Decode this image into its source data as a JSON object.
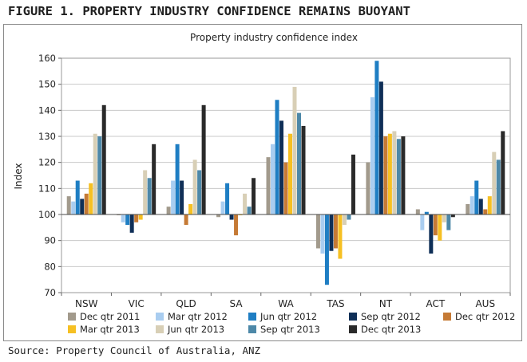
{
  "figure_title": "FIGURE 1. PROPERTY INDUSTRY CONFIDENCE REMAINS BUOYANT",
  "source": "Source: Property Council of Australia, ANZ",
  "chart_data": {
    "type": "bar",
    "title": "Property industry confidence index",
    "xlabel": "",
    "ylabel": "Index",
    "ylim": [
      70,
      160
    ],
    "yticks": [
      70,
      80,
      90,
      100,
      110,
      120,
      130,
      140,
      150,
      160
    ],
    "baseline": 100,
    "grid": true,
    "legend_position": "bottom",
    "categories": [
      "NSW",
      "VIC",
      "QLD",
      "SA",
      "WA",
      "TAS",
      "NT",
      "ACT",
      "AUS"
    ],
    "series": [
      {
        "name": "Dec qtr 2011",
        "color": "#a29a8c",
        "values": [
          107,
          100,
          103,
          99,
          122,
          87,
          120,
          102,
          104
        ]
      },
      {
        "name": "Mar qtr 2012",
        "color": "#a9cdf0",
        "values": [
          105,
          97,
          113,
          105,
          127,
          85,
          145,
          94,
          107
        ]
      },
      {
        "name": "Jun qtr 2012",
        "color": "#1f7ec3",
        "values": [
          113,
          96,
          127,
          112,
          144,
          73,
          159,
          101,
          113
        ]
      },
      {
        "name": "Sep qtr 2012",
        "color": "#0f2f57",
        "values": [
          106,
          93,
          113,
          98,
          136,
          86,
          151,
          85,
          106
        ]
      },
      {
        "name": "Dec qtr 2012",
        "color": "#c57a35",
        "values": [
          108,
          97,
          96,
          92,
          120,
          87,
          130,
          92,
          102
        ]
      },
      {
        "name": "Mar qtr 2013",
        "color": "#f6c023",
        "values": [
          112,
          98,
          104,
          100,
          131,
          83,
          131,
          90,
          107
        ]
      },
      {
        "name": "Jun qtr 2013",
        "color": "#d8cfb6",
        "values": [
          131,
          117,
          121,
          108,
          149,
          96,
          132,
          97,
          124
        ]
      },
      {
        "name": "Sep qtr 2013",
        "color": "#4d88a8",
        "values": [
          130,
          114,
          117,
          103,
          139,
          98,
          129,
          94,
          121
        ]
      },
      {
        "name": "Dec qtr 2013",
        "color": "#2a2a2a",
        "values": [
          142,
          127,
          142,
          114,
          134,
          123,
          130,
          99,
          132
        ]
      }
    ]
  }
}
